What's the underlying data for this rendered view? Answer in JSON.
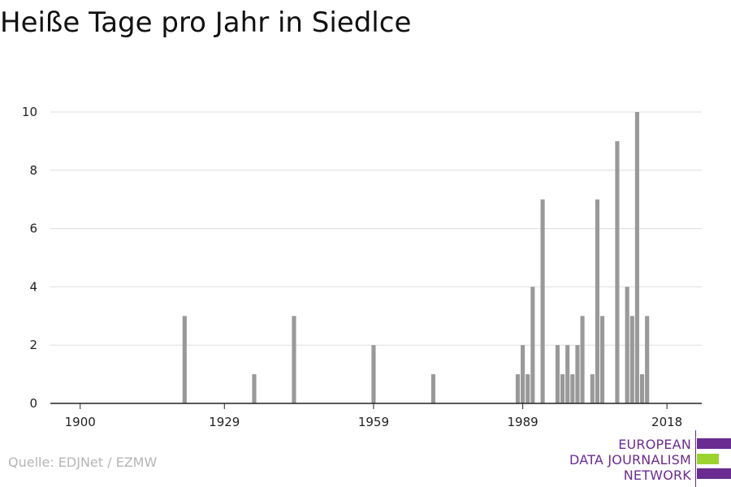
{
  "title": "Heiße Tage pro Jahr in Siedlce",
  "source": "Quelle: EDJNet / EZMW",
  "logo": {
    "lines": [
      "EUROPEAN",
      "DATA JOURNALISM",
      "NETWORK"
    ],
    "colors": {
      "purple": "#6a2c91",
      "green": "#9bd32f"
    }
  },
  "colors": {
    "bar": "#999999",
    "grid": "#dddddd",
    "axis": "#222222",
    "tick_text": "#222222"
  },
  "chart_data": {
    "type": "bar",
    "title": "Heiße Tage pro Jahr in Siedlce",
    "xlabel": "",
    "ylabel": "",
    "xlim": [
      1894,
      2025
    ],
    "ylim": [
      0,
      10
    ],
    "x_ticks": [
      1900,
      1929,
      1959,
      1989,
      2018
    ],
    "y_ticks": [
      0,
      2,
      4,
      6,
      8,
      10
    ],
    "grid": true,
    "x": [
      1921,
      1935,
      1943,
      1959,
      1971,
      1988,
      1989,
      1990,
      1991,
      1993,
      1996,
      1997,
      1998,
      1999,
      2000,
      2001,
      2003,
      2004,
      2005,
      2006,
      2008,
      2010,
      2011,
      2012,
      2013,
      2014
    ],
    "values": [
      3,
      1,
      3,
      2,
      1,
      1,
      2,
      1,
      4,
      7,
      2,
      1,
      2,
      1,
      2,
      3,
      1,
      7,
      3,
      0,
      9,
      4,
      3,
      10,
      1,
      3
    ]
  }
}
